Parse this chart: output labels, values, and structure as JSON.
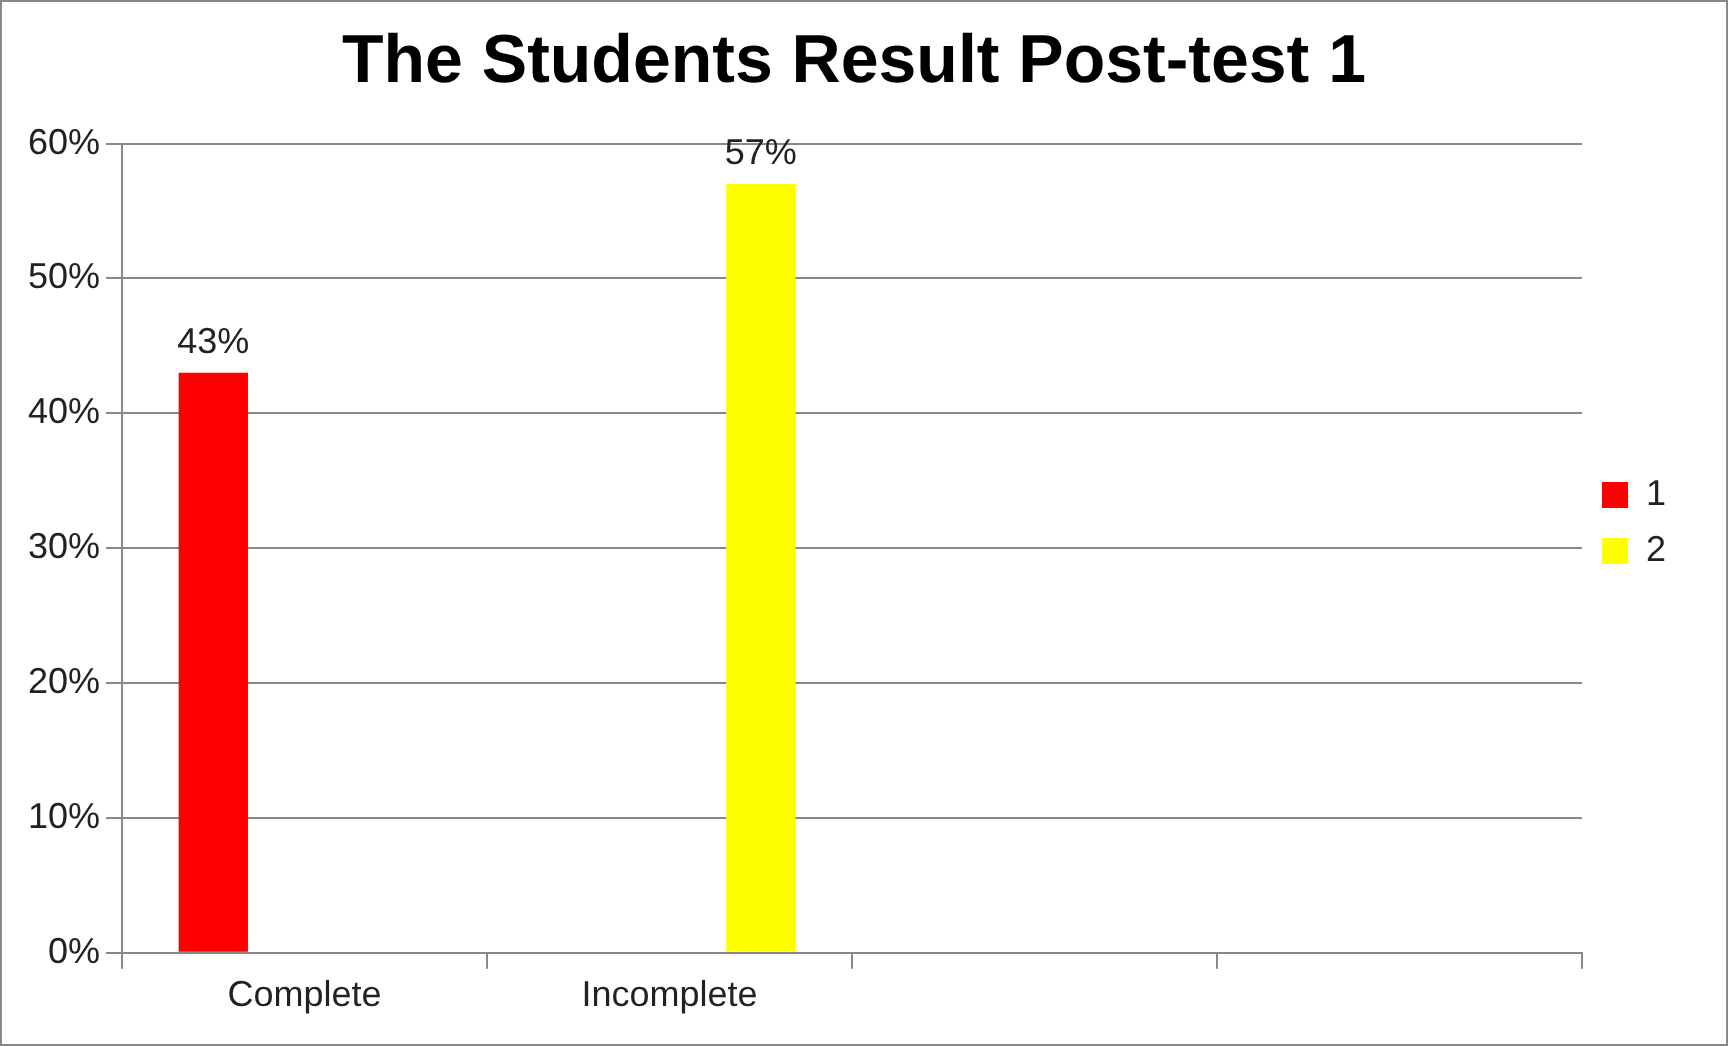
{
  "chart_data": {
    "type": "bar",
    "title": "The Students Result Post-test 1",
    "categories": [
      "Complete",
      "Incomplete",
      null,
      null
    ],
    "series": [
      {
        "name": "1",
        "color": "#ff0000",
        "values": [
          43,
          null,
          null,
          null
        ],
        "value_labels": [
          "43%",
          null,
          null,
          null
        ]
      },
      {
        "name": "2",
        "color": "#ffff00",
        "values": [
          null,
          57,
          null,
          null
        ],
        "value_labels": [
          null,
          "57%",
          null,
          null
        ]
      }
    ],
    "ylim": [
      0,
      60
    ],
    "yticks": [
      {
        "value": 0,
        "label": "0%"
      },
      {
        "value": 10,
        "label": "10%"
      },
      {
        "value": 20,
        "label": "20%"
      },
      {
        "value": 30,
        "label": "30%"
      },
      {
        "value": 40,
        "label": "40%"
      },
      {
        "value": 50,
        "label": "50%"
      },
      {
        "value": 60,
        "label": "60%"
      }
    ],
    "grid": "y",
    "legend": "right"
  }
}
